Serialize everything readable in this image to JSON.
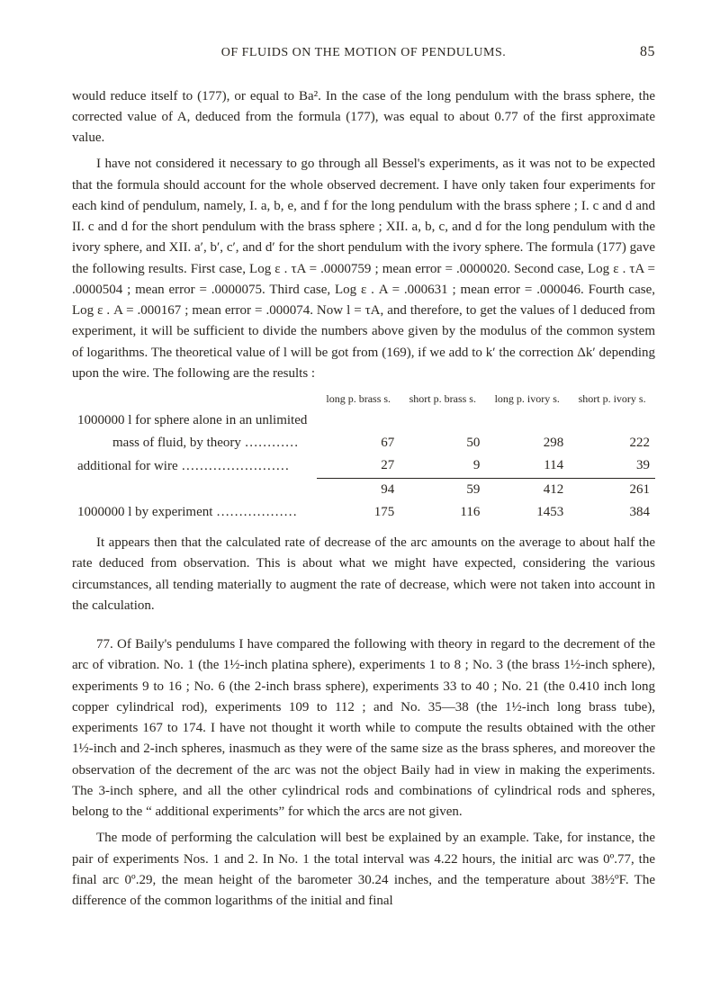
{
  "page_number": "85",
  "running_head": "OF FLUIDS ON THE MOTION OF PENDULUMS.",
  "para1": "would reduce itself to (177), or equal to Ba². In the case of the long pendulum with the brass sphere, the corrected value of A, deduced from the formula (177), was equal to about 0.77 of the first approximate value.",
  "para2": "I have not considered it necessary to go through all Bessel's experiments, as it was not to be expected that the formula should account for the whole observed decrement. I have only taken four experiments for each kind of pendulum, namely, I. a, b, e, and f for the long pendulum with the brass sphere ; I. c and d and II. c and d for the short pendulum with the brass sphere ; XII. a, b, c, and d for the long pendulum with the ivory sphere, and XII. a′, b′, c′, and d′ for the short pendulum with the ivory sphere. The formula (177) gave the following results. First case, Log ε . τA = .0000759 ; mean error = .0000020. Second case, Log ε . τA = .0000504 ; mean error = .0000075. Third case, Log ε . A = .000631 ; mean error = .000046. Fourth case, Log ε . A = .000167 ; mean error = .000074. Now l = τA, and therefore, to get the values of l deduced from experiment, it will be sufficient to divide the numbers above given by the modulus of the common system of logarithms. The theoretical value of l will be got from (169), if we add to k′ the correction Δk′ depending upon the wire. The following are the results :",
  "table": {
    "head": [
      "",
      "long p. brass s.",
      "short p. brass s.",
      "long p. ivory s.",
      "short p. ivory s."
    ],
    "rowA": [
      "1000000 l for sphere alone in an unlimited",
      "",
      "",
      "",
      ""
    ],
    "rowB": [
      "mass of fluid, by theory  …………",
      "67",
      "50",
      "298",
      "222"
    ],
    "rowC": [
      "additional for wire  ……………………",
      "27",
      "9",
      "114",
      "39"
    ],
    "rowD": [
      "",
      "94",
      "59",
      "412",
      "261"
    ],
    "rowE": [
      "1000000 l by experiment  ………………",
      "175",
      "116",
      "1453",
      "384"
    ]
  },
  "para3": "It appears then that the calculated rate of decrease of the arc amounts on the average to about half the rate deduced from observation. This is about what we might have expected, considering the various circumstances, all tending materially to augment the rate of decrease, which were not taken into account in the calculation.",
  "para4": "77. Of Baily's pendulums I have compared the following with theory in regard to the decrement of the arc of vibration. No. 1 (the 1½-inch platina sphere), experiments 1 to 8 ; No. 3 (the brass 1½-inch sphere), experiments 9 to 16 ; No. 6 (the 2-inch brass sphere), experiments 33 to 40 ; No. 21 (the 0.410 inch long copper cylindrical rod), experiments 109 to 112 ; and No. 35—38 (the 1½-inch long brass tube), experiments 167 to 174. I have not thought it worth while to compute the results obtained with the other 1½-inch and 2-inch spheres, inasmuch as they were of the same size as the brass spheres, and moreover the observation of the decrement of the arc was not the object Baily had in view in making the experiments. The 3-inch sphere, and all the other cylindrical rods and combinations of cylindrical rods and spheres, belong to the “ additional experiments” for which the arcs are not given.",
  "para5": "The mode of performing the calculation will best be explained by an example. Take, for instance, the pair of experiments Nos. 1 and 2. In No. 1 the total interval was 4.22 hours, the initial arc was 0º.77, the final arc 0º.29, the mean height of the barometer 30.24 inches, and the temperature about 38½ºF. The difference of the common logarithms of the initial and final"
}
